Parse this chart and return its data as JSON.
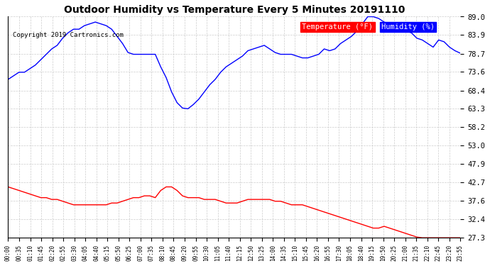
{
  "title": "Outdoor Humidity vs Temperature Every 5 Minutes 20191110",
  "copyright": "Copyright 2019 Cartronics.com",
  "legend_temp": "Temperature (°F)",
  "legend_hum": "Humidity (%)",
  "ylabel_right": [
    "89.0",
    "83.9",
    "78.7",
    "73.6",
    "68.4",
    "63.3",
    "58.2",
    "53.0",
    "47.9",
    "42.7",
    "37.6",
    "32.4",
    "27.3"
  ],
  "ymin": 27.3,
  "ymax": 89.0,
  "temp_color": "#ff0000",
  "hum_color": "#0000ff",
  "bg_color": "#ffffff",
  "grid_color": "#cccccc",
  "title_fontsize": 12,
  "xtick_labels": [
    "00:00",
    "00:35",
    "01:10",
    "01:45",
    "02:20",
    "02:55",
    "03:30",
    "04:05",
    "04:40",
    "05:15",
    "05:50",
    "06:25",
    "07:00",
    "07:35",
    "08:10",
    "08:45",
    "09:20",
    "09:55",
    "10:30",
    "11:05",
    "11:40",
    "12:15",
    "12:50",
    "13:25",
    "14:00",
    "14:35",
    "15:10",
    "15:45",
    "16:20",
    "16:55",
    "17:30",
    "18:05",
    "18:40",
    "19:15",
    "19:50",
    "20:25",
    "21:00",
    "21:35",
    "22:10",
    "22:45",
    "23:20",
    "23:55"
  ],
  "humidity_data": [
    71.5,
    72.5,
    73.5,
    73.5,
    74.5,
    75.5,
    77.0,
    78.5,
    80.0,
    81.0,
    83.0,
    84.5,
    85.5,
    85.5,
    86.5,
    87.0,
    87.5,
    87.0,
    86.5,
    85.5,
    83.5,
    81.5,
    79.0,
    78.5,
    78.5,
    78.5,
    78.5,
    78.5,
    75.0,
    72.0,
    68.0,
    65.0,
    63.5,
    63.3,
    64.5,
    66.0,
    68.0,
    70.0,
    71.5,
    73.5,
    75.0,
    76.0,
    77.0,
    78.0,
    79.5,
    80.0,
    80.5,
    81.0,
    80.0,
    79.0,
    78.5,
    78.5,
    78.5,
    78.0,
    77.5,
    77.5,
    78.0,
    78.5,
    80.0,
    79.5,
    80.0,
    81.5,
    82.5,
    83.5,
    85.0,
    87.0,
    89.0,
    89.0,
    88.5,
    87.5,
    87.0,
    86.5,
    85.5,
    85.0,
    84.5,
    83.0,
    82.5,
    81.5,
    80.5,
    82.5,
    82.0,
    80.5,
    79.5,
    78.8
  ],
  "temp_data": [
    41.5,
    41.0,
    40.5,
    40.0,
    39.5,
    39.0,
    38.5,
    38.5,
    38.0,
    38.0,
    37.5,
    37.0,
    36.5,
    36.5,
    36.5,
    36.5,
    36.5,
    36.5,
    36.5,
    37.0,
    37.0,
    37.5,
    38.0,
    38.5,
    38.5,
    39.0,
    39.0,
    38.5,
    40.5,
    41.5,
    41.5,
    40.5,
    39.0,
    38.5,
    38.5,
    38.5,
    38.0,
    38.0,
    38.0,
    37.5,
    37.0,
    37.0,
    37.0,
    37.5,
    38.0,
    38.0,
    38.0,
    38.0,
    38.0,
    37.5,
    37.5,
    37.0,
    36.5,
    36.5,
    36.5,
    36.0,
    35.5,
    35.0,
    34.5,
    34.0,
    33.5,
    33.0,
    32.5,
    32.0,
    31.5,
    31.0,
    30.5,
    30.0,
    30.0,
    30.5,
    30.0,
    29.5,
    29.0,
    28.5,
    28.0,
    27.5,
    27.3,
    27.3,
    27.3,
    27.3,
    27.3,
    27.3,
    27.3,
    27.3
  ]
}
